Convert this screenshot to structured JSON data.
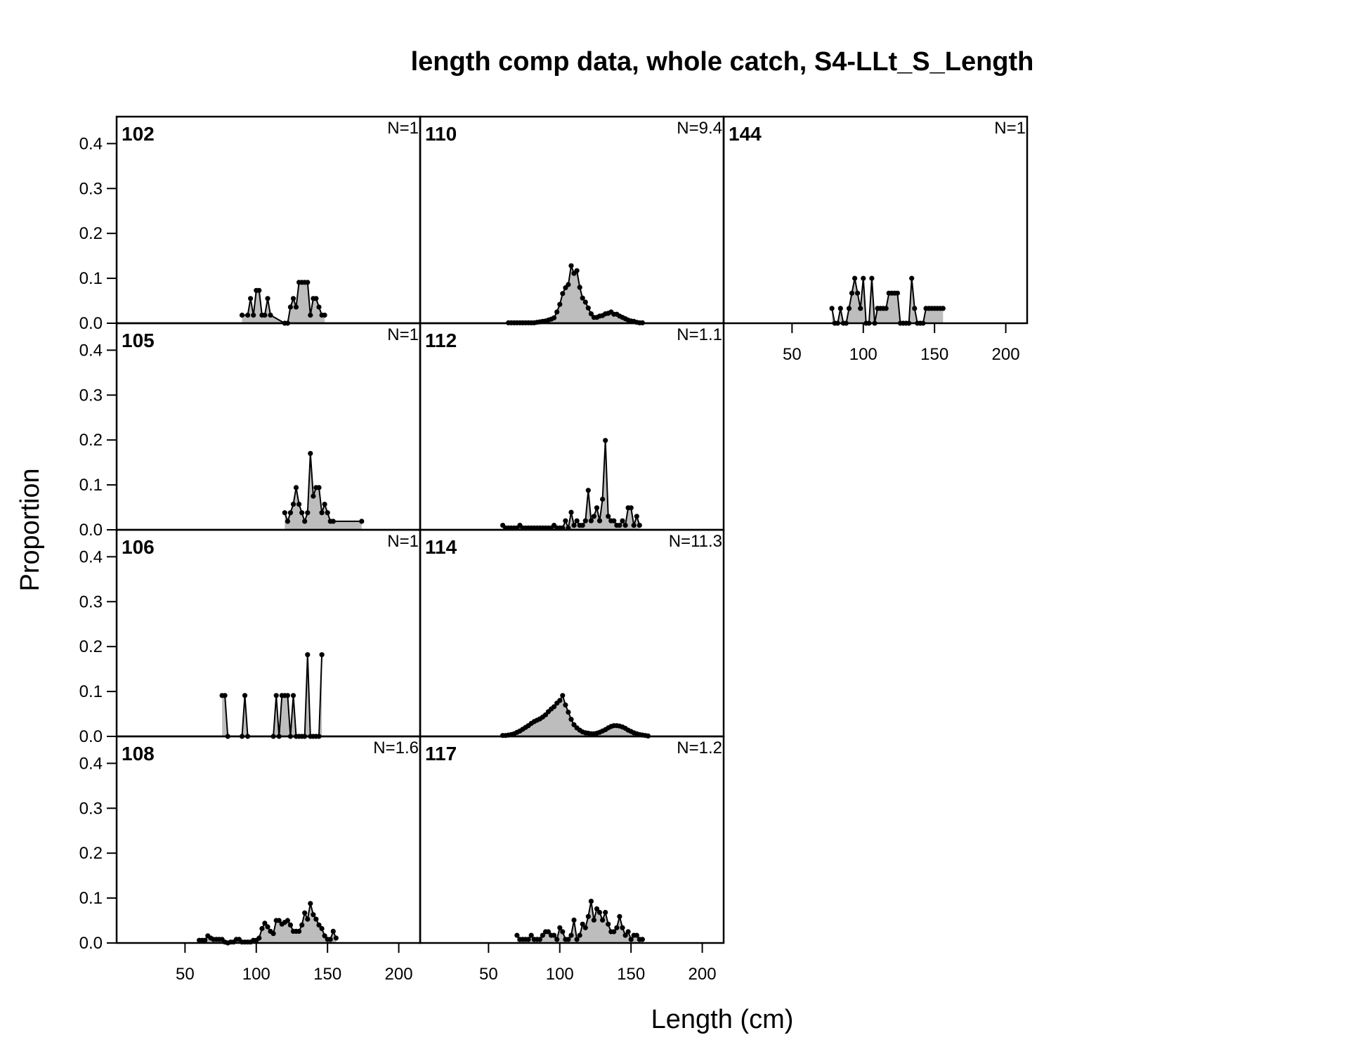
{
  "chart_data": {
    "type": "area",
    "title": "length comp data, whole catch, S4-LLt_S_Length",
    "xlabel": "Length (cm)",
    "ylabel": "Proportion",
    "xlim": [
      2,
      215
    ],
    "ylim": [
      0,
      0.46
    ],
    "xticks": [
      50,
      100,
      150,
      200
    ],
    "yticks": [
      0.0,
      0.1,
      0.2,
      0.3,
      0.4
    ],
    "ytick_labels": [
      "0.0",
      "0.1",
      "0.2",
      "0.3",
      "0.4"
    ],
    "layout": "3 columns, 4 rows, filled by column",
    "fill_color": "#bdbdbd",
    "panels": [
      {
        "label": "102",
        "n_label": "N=1",
        "x": [
          90,
          94,
          96,
          98,
          100,
          102,
          104,
          106,
          108,
          110,
          120,
          122,
          124,
          126,
          128,
          130,
          132,
          134,
          136,
          138,
          140,
          142,
          144,
          146,
          148
        ],
        "y": [
          0.018,
          0.018,
          0.055,
          0.018,
          0.073,
          0.073,
          0.018,
          0.018,
          0.055,
          0.018,
          0,
          0,
          0.036,
          0.055,
          0.036,
          0.091,
          0.091,
          0.091,
          0.091,
          0.018,
          0.055,
          0.055,
          0.036,
          0.018,
          0.018
        ]
      },
      {
        "label": "105",
        "n_label": "N=1",
        "x": [
          120,
          122,
          124,
          126,
          128,
          130,
          132,
          134,
          136,
          138,
          140,
          142,
          144,
          146,
          148,
          150,
          152,
          154,
          174
        ],
        "y": [
          0.038,
          0.019,
          0.038,
          0.057,
          0.094,
          0.057,
          0.038,
          0.019,
          0.038,
          0.17,
          0.075,
          0.094,
          0.094,
          0.038,
          0.057,
          0.038,
          0.019,
          0.019,
          0.019
        ]
      },
      {
        "label": "106",
        "n_label": "N=1",
        "x": [
          76,
          78,
          80,
          90,
          92,
          94,
          112,
          114,
          116,
          118,
          120,
          122,
          124,
          126,
          128,
          130,
          132,
          134,
          136,
          138,
          140,
          142,
          144,
          146
        ],
        "y": [
          0.091,
          0.091,
          0,
          0,
          0.091,
          0,
          0,
          0.091,
          0,
          0.091,
          0.091,
          0.091,
          0,
          0.091,
          0,
          0,
          0,
          0,
          0.182,
          0,
          0,
          0,
          0,
          0.182
        ]
      },
      {
        "label": "108",
        "n_label": "N=1.6",
        "x": [
          60,
          62,
          64,
          66,
          68,
          70,
          72,
          74,
          76,
          78,
          80,
          82,
          84,
          86,
          88,
          90,
          92,
          94,
          96,
          98,
          100,
          102,
          104,
          106,
          108,
          110,
          112,
          114,
          116,
          118,
          120,
          122,
          124,
          126,
          128,
          130,
          132,
          134,
          136,
          138,
          140,
          142,
          144,
          146,
          148,
          150,
          152,
          154,
          156
        ],
        "y": [
          0.006,
          0.006,
          0.006,
          0.016,
          0.011,
          0.008,
          0.008,
          0.008,
          0.008,
          0.002,
          0,
          0.002,
          0.002,
          0.008,
          0.008,
          0.002,
          0.002,
          0.002,
          0.002,
          0.006,
          0.006,
          0.011,
          0.032,
          0.044,
          0.036,
          0.026,
          0.021,
          0.05,
          0.05,
          0.042,
          0.046,
          0.05,
          0.04,
          0.026,
          0.026,
          0.026,
          0.04,
          0.067,
          0.053,
          0.088,
          0.063,
          0.053,
          0.04,
          0.032,
          0.016,
          0.008,
          0.008,
          0.026,
          0.011
        ]
      },
      {
        "label": "110",
        "n_label": "N=9.4",
        "x": [
          64,
          66,
          68,
          70,
          72,
          74,
          76,
          78,
          80,
          82,
          84,
          86,
          88,
          90,
          92,
          94,
          96,
          98,
          100,
          102,
          104,
          106,
          108,
          110,
          112,
          114,
          116,
          118,
          120,
          122,
          124,
          126,
          128,
          130,
          132,
          134,
          136,
          138,
          140,
          142,
          144,
          146,
          148,
          150,
          152,
          154,
          156,
          158
        ],
        "y": [
          0.001,
          0.001,
          0.001,
          0.001,
          0.001,
          0.001,
          0.001,
          0.001,
          0.001,
          0.001,
          0.002,
          0.003,
          0.004,
          0.005,
          0.007,
          0.009,
          0.012,
          0.025,
          0.042,
          0.066,
          0.079,
          0.086,
          0.128,
          0.111,
          0.117,
          0.08,
          0.056,
          0.047,
          0.034,
          0.021,
          0.013,
          0.013,
          0.016,
          0.017,
          0.021,
          0.022,
          0.025,
          0.02,
          0.02,
          0.016,
          0.013,
          0.01,
          0.007,
          0.005,
          0.004,
          0.002,
          0.001,
          0.001
        ]
      },
      {
        "label": "112",
        "n_label": "N=1.1",
        "x": [
          60,
          62,
          64,
          66,
          68,
          70,
          72,
          74,
          76,
          78,
          80,
          82,
          84,
          86,
          88,
          90,
          92,
          94,
          96,
          98,
          100,
          102,
          104,
          106,
          108,
          110,
          112,
          114,
          116,
          118,
          120,
          122,
          124,
          126,
          128,
          130,
          132,
          134,
          136,
          138,
          140,
          142,
          144,
          146,
          148,
          150,
          152,
          154,
          156
        ],
        "y": [
          0.01,
          0.004,
          0.004,
          0.004,
          0.004,
          0.004,
          0.01,
          0.004,
          0.004,
          0.004,
          0.004,
          0.004,
          0.004,
          0.004,
          0.004,
          0.004,
          0.004,
          0.004,
          0.01,
          0.004,
          0.004,
          0.004,
          0.02,
          0.004,
          0.039,
          0.01,
          0.02,
          0.01,
          0.01,
          0.02,
          0.088,
          0.02,
          0.03,
          0.049,
          0.02,
          0.068,
          0.199,
          0.03,
          0.02,
          0.02,
          0.01,
          0.01,
          0.02,
          0.01,
          0.049,
          0.049,
          0.01,
          0.03,
          0.01
        ]
      },
      {
        "label": "114",
        "n_label": "N=11.3",
        "x": [
          60,
          62,
          64,
          66,
          68,
          70,
          72,
          74,
          76,
          78,
          80,
          82,
          84,
          86,
          88,
          90,
          92,
          94,
          96,
          98,
          100,
          102,
          104,
          106,
          108,
          110,
          112,
          114,
          116,
          118,
          120,
          122,
          124,
          126,
          128,
          130,
          132,
          134,
          136,
          138,
          140,
          142,
          144,
          146,
          148,
          150,
          152,
          154,
          156,
          158,
          160,
          162
        ],
        "y": [
          0.002,
          0.002,
          0.003,
          0.004,
          0.006,
          0.009,
          0.012,
          0.016,
          0.02,
          0.024,
          0.029,
          0.033,
          0.036,
          0.039,
          0.043,
          0.048,
          0.055,
          0.061,
          0.066,
          0.074,
          0.08,
          0.091,
          0.07,
          0.054,
          0.038,
          0.026,
          0.019,
          0.014,
          0.01,
          0.008,
          0.007,
          0.006,
          0.006,
          0.007,
          0.009,
          0.012,
          0.015,
          0.019,
          0.022,
          0.024,
          0.024,
          0.023,
          0.021,
          0.018,
          0.014,
          0.011,
          0.008,
          0.006,
          0.004,
          0.003,
          0.002,
          0.001
        ]
      },
      {
        "label": "117",
        "n_label": "N=1.2",
        "x": [
          70,
          72,
          74,
          76,
          78,
          80,
          82,
          84,
          86,
          88,
          90,
          92,
          94,
          96,
          98,
          100,
          102,
          104,
          106,
          108,
          110,
          112,
          114,
          116,
          118,
          120,
          122,
          124,
          126,
          128,
          130,
          132,
          134,
          136,
          138,
          140,
          142,
          144,
          146,
          148,
          150,
          152,
          154,
          156,
          158
        ],
        "y": [
          0.017,
          0.008,
          0.008,
          0.008,
          0.008,
          0.017,
          0.008,
          0.008,
          0.008,
          0.017,
          0.025,
          0.025,
          0.017,
          0.017,
          0.008,
          0.034,
          0.025,
          0.008,
          0.008,
          0.017,
          0.051,
          0.008,
          0.017,
          0.042,
          0.034,
          0.059,
          0.093,
          0.051,
          0.076,
          0.068,
          0.051,
          0.068,
          0.042,
          0.025,
          0.025,
          0.034,
          0.059,
          0.034,
          0.017,
          0.025,
          0.008,
          0.017,
          0.017,
          0.008,
          0.008
        ]
      },
      {
        "label": "144",
        "n_label": "N=1",
        "x": [
          78,
          80,
          82,
          84,
          86,
          88,
          90,
          92,
          94,
          96,
          98,
          100,
          102,
          104,
          106,
          108,
          110,
          112,
          114,
          116,
          118,
          120,
          122,
          124,
          126,
          128,
          130,
          132,
          134,
          136,
          138,
          140,
          142,
          144,
          146,
          148,
          150,
          152,
          154,
          156
        ],
        "y": [
          0.033,
          0,
          0,
          0.033,
          0,
          0,
          0.033,
          0.067,
          0.1,
          0.067,
          0.033,
          0.1,
          0,
          0,
          0.1,
          0,
          0.033,
          0.033,
          0.033,
          0.033,
          0.067,
          0.067,
          0.067,
          0.067,
          0,
          0,
          0,
          0,
          0.1,
          0.033,
          0,
          0,
          0,
          0.033,
          0.033,
          0.033,
          0.033,
          0.033,
          0.033,
          0.033
        ]
      }
    ]
  }
}
